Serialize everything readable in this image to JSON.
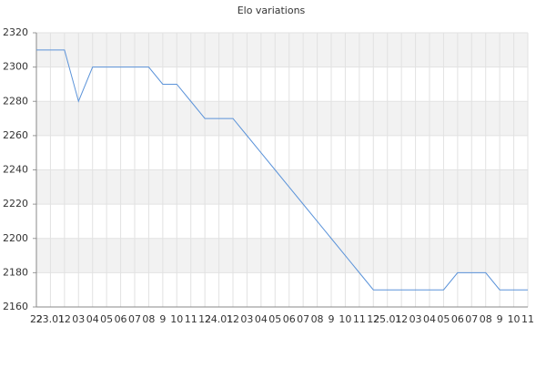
{
  "chart_data": {
    "type": "line",
    "title": "Elo variations",
    "categories": [
      "22",
      "23.01",
      "12",
      "03",
      "04",
      "05",
      "06",
      "07",
      "08",
      "9",
      "10",
      "11",
      "12",
      "24.01",
      "12",
      "03",
      "04",
      "05",
      "06",
      "07",
      "08",
      "9",
      "10",
      "11",
      "12",
      "25.01",
      "12",
      "03",
      "04",
      "05",
      "06",
      "07",
      "08",
      "9",
      "10",
      "11"
    ],
    "values": [
      2310,
      2310,
      2310,
      2280,
      2300,
      2300,
      2300,
      2300,
      2300,
      2290,
      2290,
      2280,
      2270,
      2270,
      2270,
      2260,
      2250,
      2240,
      2230,
      2220,
      2210,
      2200,
      2190,
      2180,
      2170,
      2170,
      2170,
      2170,
      2170,
      2170,
      2180,
      2180,
      2180,
      2170,
      2170,
      2170
    ],
    "color": "#5b93d9",
    "ylim": [
      2160,
      2320
    ],
    "yticks": [
      2160,
      2180,
      2200,
      2220,
      2240,
      2260,
      2280,
      2300,
      2320
    ],
    "grid": true
  }
}
